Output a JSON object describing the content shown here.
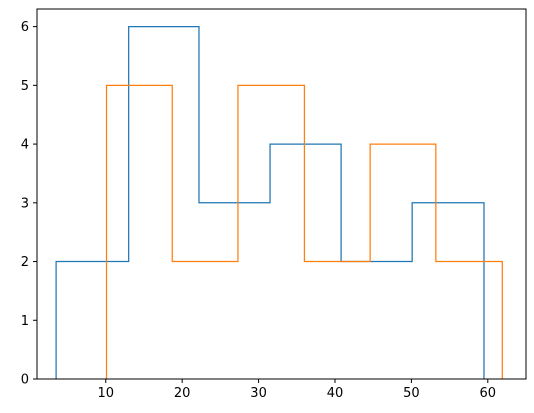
{
  "chart_data": {
    "type": "histogram-step",
    "title": "",
    "xlabel": "",
    "ylabel": "",
    "xlim": [
      1,
      65
    ],
    "ylim": [
      0,
      6.3
    ],
    "x_ticks": [
      10,
      20,
      30,
      40,
      50,
      60
    ],
    "y_ticks": [
      0,
      1,
      2,
      3,
      4,
      5,
      6
    ],
    "grid": false,
    "legend": "none",
    "series": [
      {
        "color": "#1f77b4",
        "bin_edges": [
          3.5,
          13.0,
          22.2,
          31.5,
          40.8,
          50.1,
          59.5
        ],
        "counts": [
          2,
          6,
          3,
          4,
          2,
          3
        ]
      },
      {
        "color": "#ff7f0e",
        "bin_edges": [
          10.1,
          18.7,
          27.3,
          36.0,
          44.6,
          53.2,
          61.9
        ],
        "counts": [
          5,
          2,
          5,
          2,
          4,
          2
        ]
      }
    ]
  }
}
